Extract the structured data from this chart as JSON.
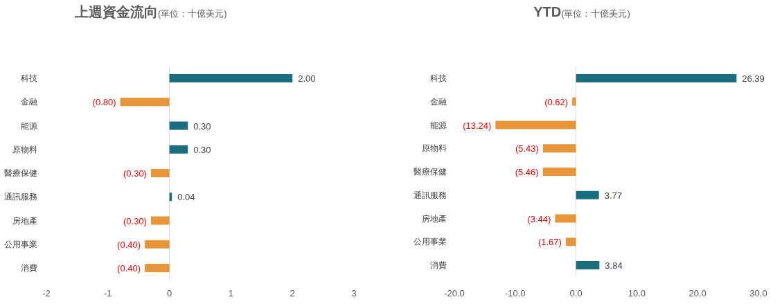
{
  "chart_data": [
    {
      "type": "bar",
      "orientation": "horizontal",
      "title": "上週資金流向",
      "subtitle": "(單位：十億美元)",
      "categories": [
        "科技",
        "金融",
        "能源",
        "原物料",
        "醫療保健",
        "通訊服務",
        "房地產",
        "公用事業",
        "消費"
      ],
      "values": [
        2.0,
        -0.8,
        0.3,
        0.3,
        -0.3,
        0.04,
        -0.3,
        -0.4,
        -0.4
      ],
      "colors": [
        "#1a6e80",
        "#e8963a",
        "#1a6e80",
        "#1a6e80",
        "#e8963a",
        "#1a6e80",
        "#e8963a",
        "#e8963a",
        "#e8963a"
      ],
      "value_labels": [
        "2.00",
        "(0.80)",
        "0.30",
        "0.30",
        "(0.30)",
        "0.04",
        "(0.30)",
        "(0.40)",
        "(0.40)"
      ],
      "xlim": [
        -2,
        3
      ],
      "xticks": [
        -2,
        -1,
        0,
        1,
        2,
        3
      ]
    },
    {
      "type": "bar",
      "orientation": "horizontal",
      "title": "YTD",
      "subtitle": "(單位：十億美元)",
      "categories": [
        "科技",
        "金融",
        "能源",
        "原物料",
        "醫療保健",
        "通訊服務",
        "房地產",
        "公用事業",
        "消費"
      ],
      "values": [
        26.39,
        -0.62,
        -13.24,
        -5.43,
        -5.46,
        3.77,
        -3.44,
        -1.67,
        3.84
      ],
      "colors": [
        "#1a6e80",
        "#e8963a",
        "#e8963a",
        "#e8963a",
        "#e8963a",
        "#1a6e80",
        "#e8963a",
        "#e8963a",
        "#1a6e80"
      ],
      "value_labels": [
        "26.39",
        "(0.62)",
        "(13.24)",
        "(5.43)",
        "(5.46)",
        "3.77",
        "(3.44)",
        "(1.67)",
        "3.84"
      ],
      "xlim": [
        -20,
        30
      ],
      "xticks": [
        {
          "value": -20,
          "label": "-20.0"
        },
        {
          "value": -10,
          "label": "-10.0"
        },
        {
          "value": 0,
          "label": "0.0"
        },
        {
          "value": 10,
          "label": "10.0"
        },
        {
          "value": 20,
          "label": "20.0"
        },
        {
          "value": 30,
          "label": "30.0"
        }
      ]
    }
  ]
}
